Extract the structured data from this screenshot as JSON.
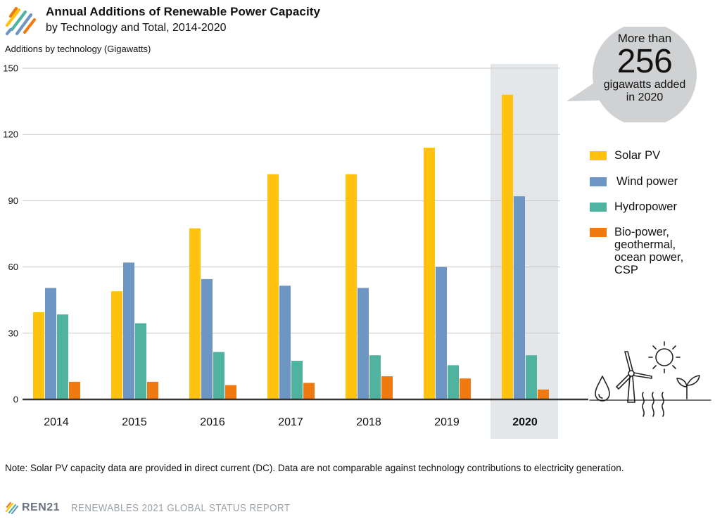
{
  "header": {
    "title": "Annual Additions of Renewable Power Capacity",
    "subtitle": "by Technology and Total, 2014-2020",
    "y_axis_label": "Additions by technology (Gigawatts)"
  },
  "callout": {
    "pre": "More than",
    "value": "256",
    "post_line1": "gigawatts added",
    "post_line2": "in 2020"
  },
  "note": "Note: Solar PV capacity data are provided in direct current (DC). Data are not comparable against technology contributions to electricity generation.",
  "footer": {
    "brand": "REN21",
    "report": "RENEWABLES 2021 GLOBAL STATUS REPORT"
  },
  "colors": {
    "solar": "#FFC20E",
    "wind": "#6E96C4",
    "hydro": "#4FB3A0",
    "bio": "#F07A10",
    "grid": "#c8c8c8",
    "highlight": "#E4E7EA",
    "callout": "#CFD1D3"
  },
  "icons": [
    "ren21-logo-icon",
    "water-drop-icon",
    "wind-turbine-icon",
    "sun-icon",
    "heat-waves-icon",
    "plant-sprout-icon"
  ],
  "chart_data": {
    "type": "bar",
    "categories": [
      "2014",
      "2015",
      "2016",
      "2017",
      "2018",
      "2019",
      "2020"
    ],
    "highlight_category": "2020",
    "series": [
      {
        "name": "Solar PV",
        "values": [
          39.5,
          49,
          77.5,
          102,
          102,
          114,
          138
        ]
      },
      {
        "name": "Wind power",
        "values": [
          50.5,
          62,
          54.5,
          51.5,
          50.5,
          60,
          92
        ]
      },
      {
        "name": "Hydropower",
        "values": [
          38.5,
          34.5,
          21.5,
          17.5,
          20,
          15.5,
          20
        ]
      },
      {
        "name": "Bio-power, geothermal, ocean power, CSP",
        "values": [
          8,
          8,
          6.5,
          7.5,
          10.5,
          9.5,
          4.5
        ]
      }
    ],
    "yticks": [
      0,
      30,
      60,
      90,
      120,
      150
    ],
    "ylim": [
      0,
      150
    ],
    "grid": true,
    "legend": "right"
  }
}
